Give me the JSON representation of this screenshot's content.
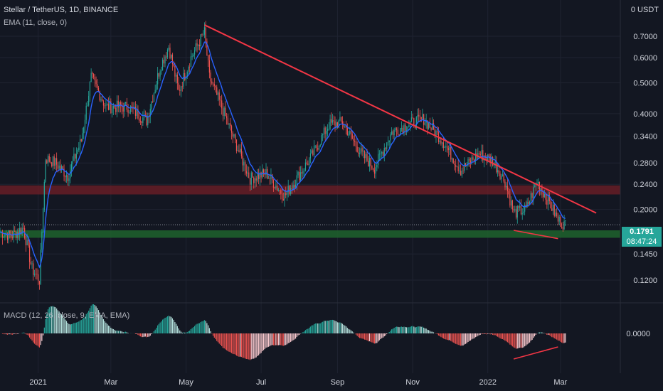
{
  "header": {
    "symbol_line": "Stellar / TetherUS, 1D, BINANCE",
    "ema_label": "EMA (11, close, 0)",
    "currency_label": "0 USDT",
    "macd_label": "MACD (12, 26, close, 9, EMA, EMA)"
  },
  "price_tag": {
    "price": "0.1791",
    "countdown": "08:47:24"
  },
  "colors": {
    "background": "#131722",
    "grid": "#1f2331",
    "candle_up": "#26a69a",
    "candle_down": "#ef5350",
    "ema": "#2962ff",
    "trendline": "#f23645",
    "resistance_zone": "#6b1e27",
    "support_zone": "#1e5e2c"
  },
  "chart_data": {
    "type": "candlestick",
    "title": "Stellar / TetherUS, 1D, BINANCE",
    "y_scale": "log",
    "ylim": [
      0.105,
      0.78
    ],
    "y_ticks": [
      "0.7000",
      "0.6000",
      "0.5000",
      "0.4000",
      "0.3400",
      "0.2800",
      "0.2400",
      "0.2000",
      "0.1450",
      "0.1200"
    ],
    "x_ticks": [
      "2021",
      "Mar",
      "May",
      "Jul",
      "Sep",
      "Nov",
      "2022",
      "Mar"
    ],
    "x_start": "2020-12-01",
    "x_end": "2022-03-08",
    "close_series": [
      {
        "date": "2020-12-01",
        "close": 0.17
      },
      {
        "date": "2020-12-10",
        "close": 0.165
      },
      {
        "date": "2020-12-20",
        "close": 0.175
      },
      {
        "date": "2020-12-27",
        "close": 0.13
      },
      {
        "date": "2021-01-02",
        "close": 0.12
      },
      {
        "date": "2021-01-07",
        "close": 0.29
      },
      {
        "date": "2021-01-15",
        "close": 0.28
      },
      {
        "date": "2021-01-25",
        "close": 0.255
      },
      {
        "date": "2021-02-05",
        "close": 0.33
      },
      {
        "date": "2021-02-13",
        "close": 0.52
      },
      {
        "date": "2021-02-25",
        "close": 0.42
      },
      {
        "date": "2021-03-15",
        "close": 0.42
      },
      {
        "date": "2021-03-30",
        "close": 0.38
      },
      {
        "date": "2021-04-10",
        "close": 0.56
      },
      {
        "date": "2021-04-17",
        "close": 0.65
      },
      {
        "date": "2021-04-25",
        "close": 0.47
      },
      {
        "date": "2021-05-05",
        "close": 0.6
      },
      {
        "date": "2021-05-16",
        "close": 0.72
      },
      {
        "date": "2021-05-20",
        "close": 0.52
      },
      {
        "date": "2021-06-01",
        "close": 0.4
      },
      {
        "date": "2021-06-15",
        "close": 0.29
      },
      {
        "date": "2021-06-22",
        "close": 0.25
      },
      {
        "date": "2021-07-05",
        "close": 0.26
      },
      {
        "date": "2021-07-20",
        "close": 0.22
      },
      {
        "date": "2021-08-10",
        "close": 0.29
      },
      {
        "date": "2021-08-25",
        "close": 0.37
      },
      {
        "date": "2021-09-05",
        "close": 0.375
      },
      {
        "date": "2021-09-20",
        "close": 0.3
      },
      {
        "date": "2021-10-01",
        "close": 0.27
      },
      {
        "date": "2021-10-15",
        "close": 0.35
      },
      {
        "date": "2021-10-28",
        "close": 0.37
      },
      {
        "date": "2021-11-10",
        "close": 0.385
      },
      {
        "date": "2021-11-25",
        "close": 0.33
      },
      {
        "date": "2021-12-10",
        "close": 0.265
      },
      {
        "date": "2021-12-25",
        "close": 0.3
      },
      {
        "date": "2022-01-05",
        "close": 0.285
      },
      {
        "date": "2022-01-15",
        "close": 0.245
      },
      {
        "date": "2022-01-22",
        "close": 0.195
      },
      {
        "date": "2022-02-01",
        "close": 0.2
      },
      {
        "date": "2022-02-10",
        "close": 0.245
      },
      {
        "date": "2022-02-20",
        "close": 0.21
      },
      {
        "date": "2022-02-27",
        "close": 0.185
      },
      {
        "date": "2022-03-05",
        "close": 0.179
      }
    ],
    "indicators": [
      {
        "name": "EMA (11, close, 0)",
        "color": "#2962ff"
      },
      {
        "name": "MACD (12, 26, close, 9, EMA, EMA)",
        "pane": "lower",
        "zero_label": "0.0000"
      }
    ],
    "annotations": {
      "descending_trendline": {
        "from": {
          "date": "2021-05-16",
          "price": 0.76
        },
        "to": {
          "date": "2022-03-30",
          "price": 0.195
        }
      },
      "resistance_zone": {
        "low": 0.223,
        "high": 0.238
      },
      "support_zone": {
        "low": 0.163,
        "high": 0.172
      },
      "price_divergence_line": {
        "from": {
          "date": "2022-01-22",
          "price": 0.172
        },
        "to": {
          "date": "2022-02-27",
          "price": 0.162
        }
      },
      "macd_divergence_line": {
        "from": "2022-01-22",
        "to": "2022-02-27"
      }
    },
    "current_price": 0.1791
  }
}
